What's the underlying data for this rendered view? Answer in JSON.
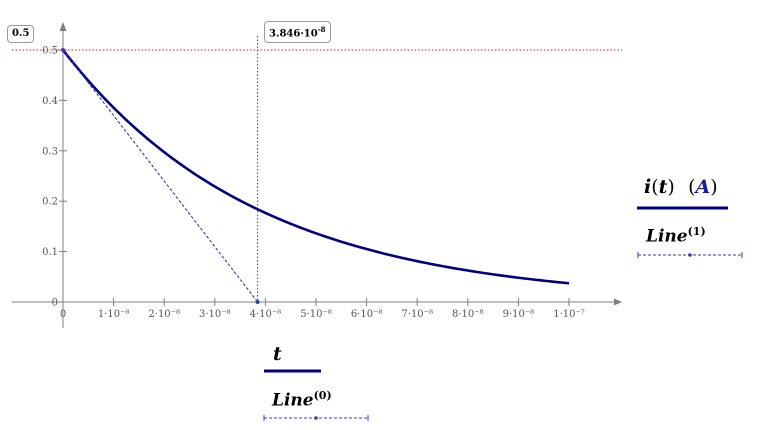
{
  "chart_data": {
    "type": "line",
    "x_ticks": [
      "0",
      "1·10⁻⁸",
      "2·10⁻⁸",
      "3·10⁻⁸",
      "4·10⁻⁸",
      "5·10⁻⁸",
      "6·10⁻⁸",
      "7·10⁻⁸",
      "8·10⁻⁸",
      "9·10⁻⁸",
      "1·10⁻⁷"
    ],
    "y_ticks": [
      "0",
      "0.1",
      "0.2",
      "0.3",
      "0.4",
      "0.5"
    ],
    "xlim": [
      0,
      1e-07
    ],
    "ylim": [
      0,
      0.5
    ],
    "series": [
      {
        "kind": "exponential-decay",
        "amplitude": 0.5,
        "time_constant": 3.846e-08,
        "x_start": 0,
        "x_end": 1e-07,
        "color": "#00007f",
        "style": "solid"
      },
      {
        "kind": "tangent",
        "points": [
          [
            0,
            0.5
          ],
          [
            3.846e-08,
            0
          ]
        ],
        "color": "#3a3ab0",
        "style": "dashed"
      }
    ],
    "markers": {
      "horizontal": {
        "value": 0.5,
        "label": "0.5",
        "color": "#cc2222"
      },
      "vertical": {
        "value": 3.846e-08,
        "label_mantissa": "3.846",
        "label_exponent": "-8",
        "color": "#3a3ab0"
      }
    },
    "legend_y": {
      "name": "i",
      "arg": "t",
      "unit": "A",
      "line_label": "Line",
      "line_index": "(1)"
    },
    "legend_x": {
      "name": "t",
      "line_label": "Line",
      "line_index": "(0)"
    },
    "grid": false
  }
}
